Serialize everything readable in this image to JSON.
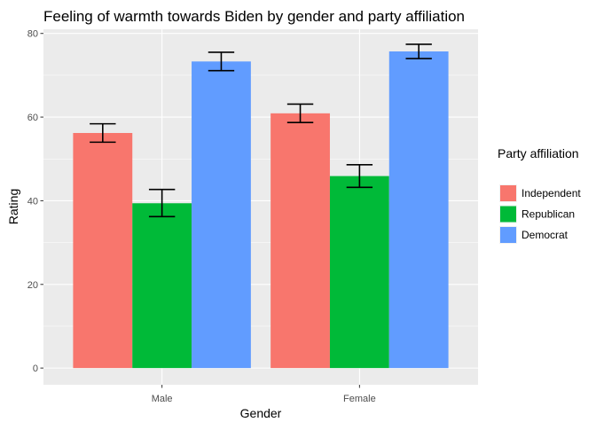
{
  "chart_data": {
    "type": "bar",
    "title": "Feeling of warmth towards Biden by gender and party affiliation",
    "xlabel": "Gender",
    "ylabel": "Rating",
    "categories": [
      "Male",
      "Female"
    ],
    "ylim": [
      -4,
      81
    ],
    "yticks": [
      0,
      20,
      40,
      60,
      80
    ],
    "grid": true,
    "legend": {
      "title": "Party affiliation",
      "placement": "right"
    },
    "series": [
      {
        "name": "Independent",
        "color": "#F8766D",
        "values": [
          56.2,
          60.9
        ],
        "error_low": [
          54.0,
          58.7
        ],
        "error_high": [
          58.4,
          63.1
        ]
      },
      {
        "name": "Republican",
        "color": "#00BA38",
        "values": [
          39.4,
          45.9
        ],
        "error_low": [
          36.2,
          43.2
        ],
        "error_high": [
          42.7,
          48.6
        ]
      },
      {
        "name": "Democrat",
        "color": "#619CFF",
        "values": [
          73.3,
          75.7
        ],
        "error_low": [
          71.1,
          74.0
        ],
        "error_high": [
          75.5,
          77.4
        ]
      }
    ]
  }
}
